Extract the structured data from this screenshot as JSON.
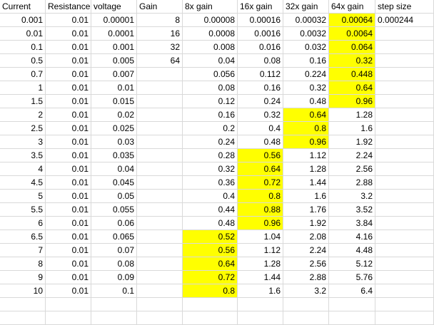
{
  "sheet": {
    "header": [
      "Current",
      "Resistance",
      "voltage",
      "Gain",
      "8x gain",
      "16x gain",
      "32x gain",
      "64x gain",
      "step size"
    ],
    "rows": [
      {
        "cells": [
          "0.001",
          "0.01",
          "0.00001",
          "8",
          "0.00008",
          "0.00016",
          "0.00032",
          "0.00064",
          "0.000244"
        ],
        "highlight": [
          7
        ]
      },
      {
        "cells": [
          "0.01",
          "0.01",
          "0.0001",
          "16",
          "0.0008",
          "0.0016",
          "0.0032",
          "0.0064",
          ""
        ],
        "highlight": [
          7
        ]
      },
      {
        "cells": [
          "0.1",
          "0.01",
          "0.001",
          "32",
          "0.008",
          "0.016",
          "0.032",
          "0.064",
          ""
        ],
        "highlight": [
          7
        ]
      },
      {
        "cells": [
          "0.5",
          "0.01",
          "0.005",
          "64",
          "0.04",
          "0.08",
          "0.16",
          "0.32",
          ""
        ],
        "highlight": [
          7
        ]
      },
      {
        "cells": [
          "0.7",
          "0.01",
          "0.007",
          "",
          "0.056",
          "0.112",
          "0.224",
          "0.448",
          ""
        ],
        "highlight": [
          7
        ]
      },
      {
        "cells": [
          "1",
          "0.01",
          "0.01",
          "",
          "0.08",
          "0.16",
          "0.32",
          "0.64",
          ""
        ],
        "highlight": [
          7
        ]
      },
      {
        "cells": [
          "1.5",
          "0.01",
          "0.015",
          "",
          "0.12",
          "0.24",
          "0.48",
          "0.96",
          ""
        ],
        "highlight": [
          7
        ]
      },
      {
        "cells": [
          "2",
          "0.01",
          "0.02",
          "",
          "0.16",
          "0.32",
          "0.64",
          "1.28",
          ""
        ],
        "highlight": [
          6
        ]
      },
      {
        "cells": [
          "2.5",
          "0.01",
          "0.025",
          "",
          "0.2",
          "0.4",
          "0.8",
          "1.6",
          ""
        ],
        "highlight": [
          6
        ]
      },
      {
        "cells": [
          "3",
          "0.01",
          "0.03",
          "",
          "0.24",
          "0.48",
          "0.96",
          "1.92",
          ""
        ],
        "highlight": [
          6
        ]
      },
      {
        "cells": [
          "3.5",
          "0.01",
          "0.035",
          "",
          "0.28",
          "0.56",
          "1.12",
          "2.24",
          ""
        ],
        "highlight": [
          5
        ]
      },
      {
        "cells": [
          "4",
          "0.01",
          "0.04",
          "",
          "0.32",
          "0.64",
          "1.28",
          "2.56",
          ""
        ],
        "highlight": [
          5
        ]
      },
      {
        "cells": [
          "4.5",
          "0.01",
          "0.045",
          "",
          "0.36",
          "0.72",
          "1.44",
          "2.88",
          ""
        ],
        "highlight": [
          5
        ]
      },
      {
        "cells": [
          "5",
          "0.01",
          "0.05",
          "",
          "0.4",
          "0.8",
          "1.6",
          "3.2",
          ""
        ],
        "highlight": [
          5
        ]
      },
      {
        "cells": [
          "5.5",
          "0.01",
          "0.055",
          "",
          "0.44",
          "0.88",
          "1.76",
          "3.52",
          ""
        ],
        "highlight": [
          5
        ]
      },
      {
        "cells": [
          "6",
          "0.01",
          "0.06",
          "",
          "0.48",
          "0.96",
          "1.92",
          "3.84",
          ""
        ],
        "highlight": [
          5
        ]
      },
      {
        "cells": [
          "6.5",
          "0.01",
          "0.065",
          "",
          "0.52",
          "1.04",
          "2.08",
          "4.16",
          ""
        ],
        "highlight": [
          4
        ]
      },
      {
        "cells": [
          "7",
          "0.01",
          "0.07",
          "",
          "0.56",
          "1.12",
          "2.24",
          "4.48",
          ""
        ],
        "highlight": [
          4
        ]
      },
      {
        "cells": [
          "8",
          "0.01",
          "0.08",
          "",
          "0.64",
          "1.28",
          "2.56",
          "5.12",
          ""
        ],
        "highlight": [
          4
        ]
      },
      {
        "cells": [
          "9",
          "0.01",
          "0.09",
          "",
          "0.72",
          "1.44",
          "2.88",
          "5.76",
          ""
        ],
        "highlight": [
          4
        ]
      },
      {
        "cells": [
          "10",
          "0.01",
          "0.1",
          "",
          "0.8",
          "1.6",
          "3.2",
          "6.4",
          ""
        ],
        "highlight": [
          4
        ]
      }
    ],
    "empty_rows": 2,
    "highlight_color": "#ffff00",
    "gridline_color": "#d9d9d9"
  }
}
